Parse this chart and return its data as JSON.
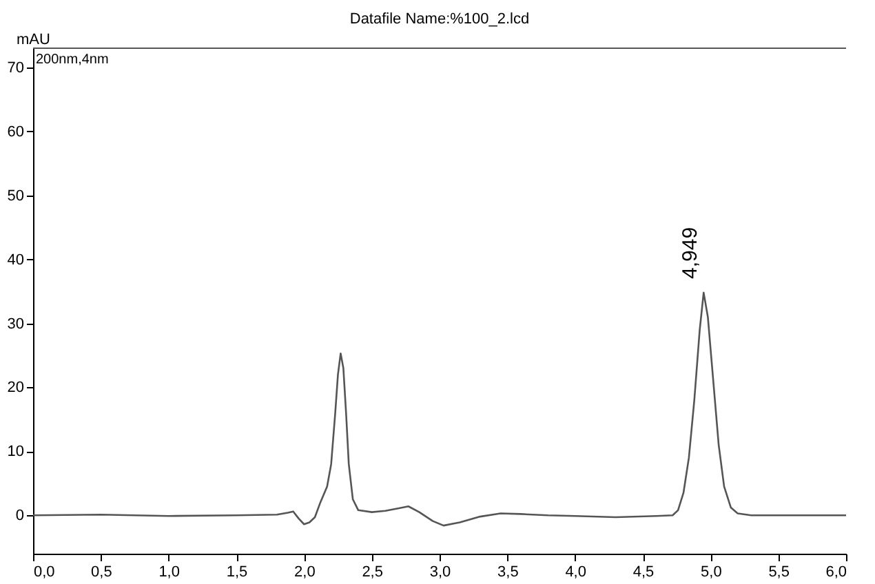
{
  "chart_data": {
    "type": "line",
    "title": "Datafile Name:%100_2.lcd",
    "ylabel": "mAU",
    "x": [
      0,
      0.5,
      1.0,
      1.5,
      1.8,
      1.88,
      1.92,
      1.96,
      2.0,
      2.04,
      2.08,
      2.12,
      2.17,
      2.2,
      2.23,
      2.25,
      2.27,
      2.29,
      2.31,
      2.33,
      2.36,
      2.4,
      2.5,
      2.6,
      2.7,
      2.77,
      2.85,
      2.95,
      3.03,
      3.15,
      3.3,
      3.45,
      3.6,
      3.8,
      4.0,
      4.3,
      4.6,
      4.72,
      4.76,
      4.8,
      4.84,
      4.88,
      4.92,
      4.949,
      4.98,
      5.02,
      5.06,
      5.1,
      5.15,
      5.2,
      5.3,
      5.5,
      6.0
    ],
    "series": [
      {
        "color": "#555555",
        "values": [
          0,
          0.1,
          -0.1,
          0,
          0.1,
          0.4,
          0.6,
          -0.5,
          -1.4,
          -1.1,
          -0.3,
          2,
          4.5,
          8,
          16,
          22,
          25.3,
          23,
          16,
          8,
          2.5,
          0.8,
          0.5,
          0.7,
          1.1,
          1.4,
          0.5,
          -0.9,
          -1.6,
          -1.1,
          -0.2,
          0.3,
          0.2,
          0,
          -0.1,
          -0.3,
          -0.1,
          0,
          0.8,
          3.5,
          9,
          18,
          29,
          34.8,
          31,
          21,
          11,
          4.5,
          1.2,
          0.3,
          0,
          0,
          0
        ]
      }
    ],
    "xlim": [
      0,
      6.0
    ],
    "ylim": [
      -6,
      73
    ],
    "xticks": [
      {
        "value": 0,
        "label": "0,0"
      },
      {
        "value": 0.5,
        "label": "0,5"
      },
      {
        "value": 1.0,
        "label": "1,0"
      },
      {
        "value": 1.5,
        "label": "1,5"
      },
      {
        "value": 2.0,
        "label": "2,0"
      },
      {
        "value": 2.5,
        "label": "2,5"
      },
      {
        "value": 3.0,
        "label": "3,0"
      },
      {
        "value": 3.5,
        "label": "3,5"
      },
      {
        "value": 4.0,
        "label": "4,0"
      },
      {
        "value": 4.5,
        "label": "4,5"
      },
      {
        "value": 5.0,
        "label": "5,0"
      },
      {
        "value": 5.5,
        "label": "5,5"
      },
      {
        "value": 6.0,
        "label": "6,0"
      }
    ],
    "yticks": [
      0,
      10,
      20,
      30,
      40,
      50,
      60,
      70
    ],
    "annotations": [
      "200nm,4nm",
      {
        "text": "4,949",
        "x": 4.949,
        "y": 34.8
      }
    ],
    "grid": false,
    "line_style": "solid",
    "marker": "none"
  }
}
